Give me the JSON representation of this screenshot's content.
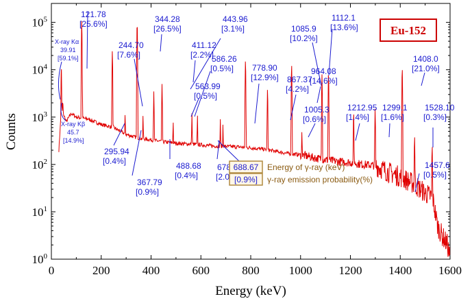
{
  "chart_data": {
    "type": "line",
    "badge": "Eu-152",
    "xlabel": "Energy (keV)",
    "ylabel": "Counts",
    "xlim": [
      0,
      1600
    ],
    "ylim_log10": [
      0,
      5.4
    ],
    "log_y": true,
    "x_ticks": [
      "0",
      "200",
      "400",
      "600",
      "800",
      "1000",
      "1200",
      "1400",
      "1600"
    ],
    "x_tick_values": [
      0,
      200,
      400,
      600,
      800,
      1000,
      1200,
      1400,
      1600
    ],
    "y_tick_values": [
      0,
      1,
      2,
      3,
      4,
      5
    ],
    "y_tick_base": "10",
    "y_tick_exponents": [
      "0",
      "1",
      "2",
      "3",
      "4",
      "5"
    ],
    "series_color": "#e00000",
    "annotation_color": "#1a1ad0",
    "continuum": [
      [
        30,
        200
      ],
      [
        40,
        1500
      ],
      [
        60,
        800
      ],
      [
        80,
        1200
      ],
      [
        100,
        1000
      ],
      [
        150,
        900
      ],
      [
        200,
        700
      ],
      [
        250,
        600
      ],
      [
        300,
        430
      ],
      [
        350,
        360
      ],
      [
        400,
        330
      ],
      [
        450,
        300
      ],
      [
        500,
        280
      ],
      [
        550,
        270
      ],
      [
        600,
        260
      ],
      [
        650,
        245
      ],
      [
        700,
        240
      ],
      [
        750,
        235
      ],
      [
        800,
        225
      ],
      [
        850,
        210
      ],
      [
        900,
        190
      ],
      [
        950,
        170
      ],
      [
        1000,
        160
      ],
      [
        1050,
        140
      ],
      [
        1100,
        125
      ],
      [
        1150,
        115
      ],
      [
        1200,
        110
      ],
      [
        1250,
        100
      ],
      [
        1300,
        95
      ],
      [
        1350,
        70
      ],
      [
        1400,
        55
      ],
      [
        1450,
        40
      ],
      [
        1500,
        25
      ],
      [
        1530,
        20
      ],
      [
        1550,
        5
      ],
      [
        1570,
        3
      ],
      [
        1590,
        2
      ],
      [
        1600,
        1
      ]
    ],
    "peaks": [
      {
        "x": 39.91,
        "y": 12000
      },
      {
        "x": 45.7,
        "y": 2500
      },
      {
        "x": 121.78,
        "y": 110000
      },
      {
        "x": 244.7,
        "y": 25000
      },
      {
        "x": 295.94,
        "y": 1200
      },
      {
        "x": 344.28,
        "y": 100000
      },
      {
        "x": 367.79,
        "y": 1100
      },
      {
        "x": 411.12,
        "y": 3500
      },
      {
        "x": 443.96,
        "y": 5000
      },
      {
        "x": 488.68,
        "y": 800
      },
      {
        "x": 563.99,
        "y": 1200
      },
      {
        "x": 586.26,
        "y": 1100
      },
      {
        "x": 678.0,
        "y": 900
      },
      {
        "x": 688.67,
        "y": 700
      },
      {
        "x": 778.9,
        "y": 16000
      },
      {
        "x": 867.37,
        "y": 4000
      },
      {
        "x": 964.08,
        "y": 13000
      },
      {
        "x": 1005.3,
        "y": 500
      },
      {
        "x": 1085.9,
        "y": 8000
      },
      {
        "x": 1112.1,
        "y": 9000
      },
      {
        "x": 1212.95,
        "y": 1300
      },
      {
        "x": 1299.1,
        "y": 1500
      },
      {
        "x": 1408.0,
        "y": 11000
      },
      {
        "x": 1457.6,
        "y": 400
      },
      {
        "x": 1528.1,
        "y": 250
      }
    ],
    "annotations": [
      {
        "energy": "121.78",
        "prob": "[25.6%]"
      },
      {
        "energy": "244.70",
        "prob": "[7.6%]"
      },
      {
        "energy": "344.28",
        "prob": "[26.5%]"
      },
      {
        "energy": "411.12",
        "prob": "[2.2%]"
      },
      {
        "energy": "443.96",
        "prob": "[3.1%]"
      },
      {
        "energy": "586.26",
        "prob": "[0.5%]"
      },
      {
        "energy": "563.99",
        "prob": "[0.5%]"
      },
      {
        "energy": "778.90",
        "prob": "[12.9%]"
      },
      {
        "energy": "867.37",
        "prob": "[4.2%]"
      },
      {
        "energy": "964.08",
        "prob": "[14.6%]"
      },
      {
        "energy": "1085.9",
        "prob": "[10.2%]"
      },
      {
        "energy": "1112.1",
        "prob": "[13.6%]"
      },
      {
        "energy": "1005.3",
        "prob": "[0.6%]"
      },
      {
        "energy": "1212.95",
        "prob": "[1.4%]"
      },
      {
        "energy": "1299.1",
        "prob": "[1.6%]"
      },
      {
        "energy": "1408.0",
        "prob": "[21.0%]"
      },
      {
        "energy": "1528.10",
        "prob": "[0.3%]"
      },
      {
        "energy": "1457.6",
        "prob": "[0.5%]"
      },
      {
        "energy": "295.94",
        "prob": "[0.4%]"
      },
      {
        "energy": "367.79",
        "prob": "[0.9%]"
      },
      {
        "energy": "488.68",
        "prob": "[0.4%]"
      },
      {
        "energy": "678.0",
        "prob": "[2.0%]"
      }
    ],
    "xray_ka": {
      "label": "X-ray Kα",
      "energy": "39.91",
      "prob": "[59.1%]"
    },
    "xray_kb": {
      "label": "X-ray Kβ",
      "energy": "45.7",
      "prob": "[14.9%]"
    },
    "legend": {
      "energy_example": "688.67",
      "prob_example": "[0.9%]",
      "energy_text": "Energy of  γ-ray  (keV)",
      "prob_text": "γ-ray emission probability(%)"
    }
  }
}
